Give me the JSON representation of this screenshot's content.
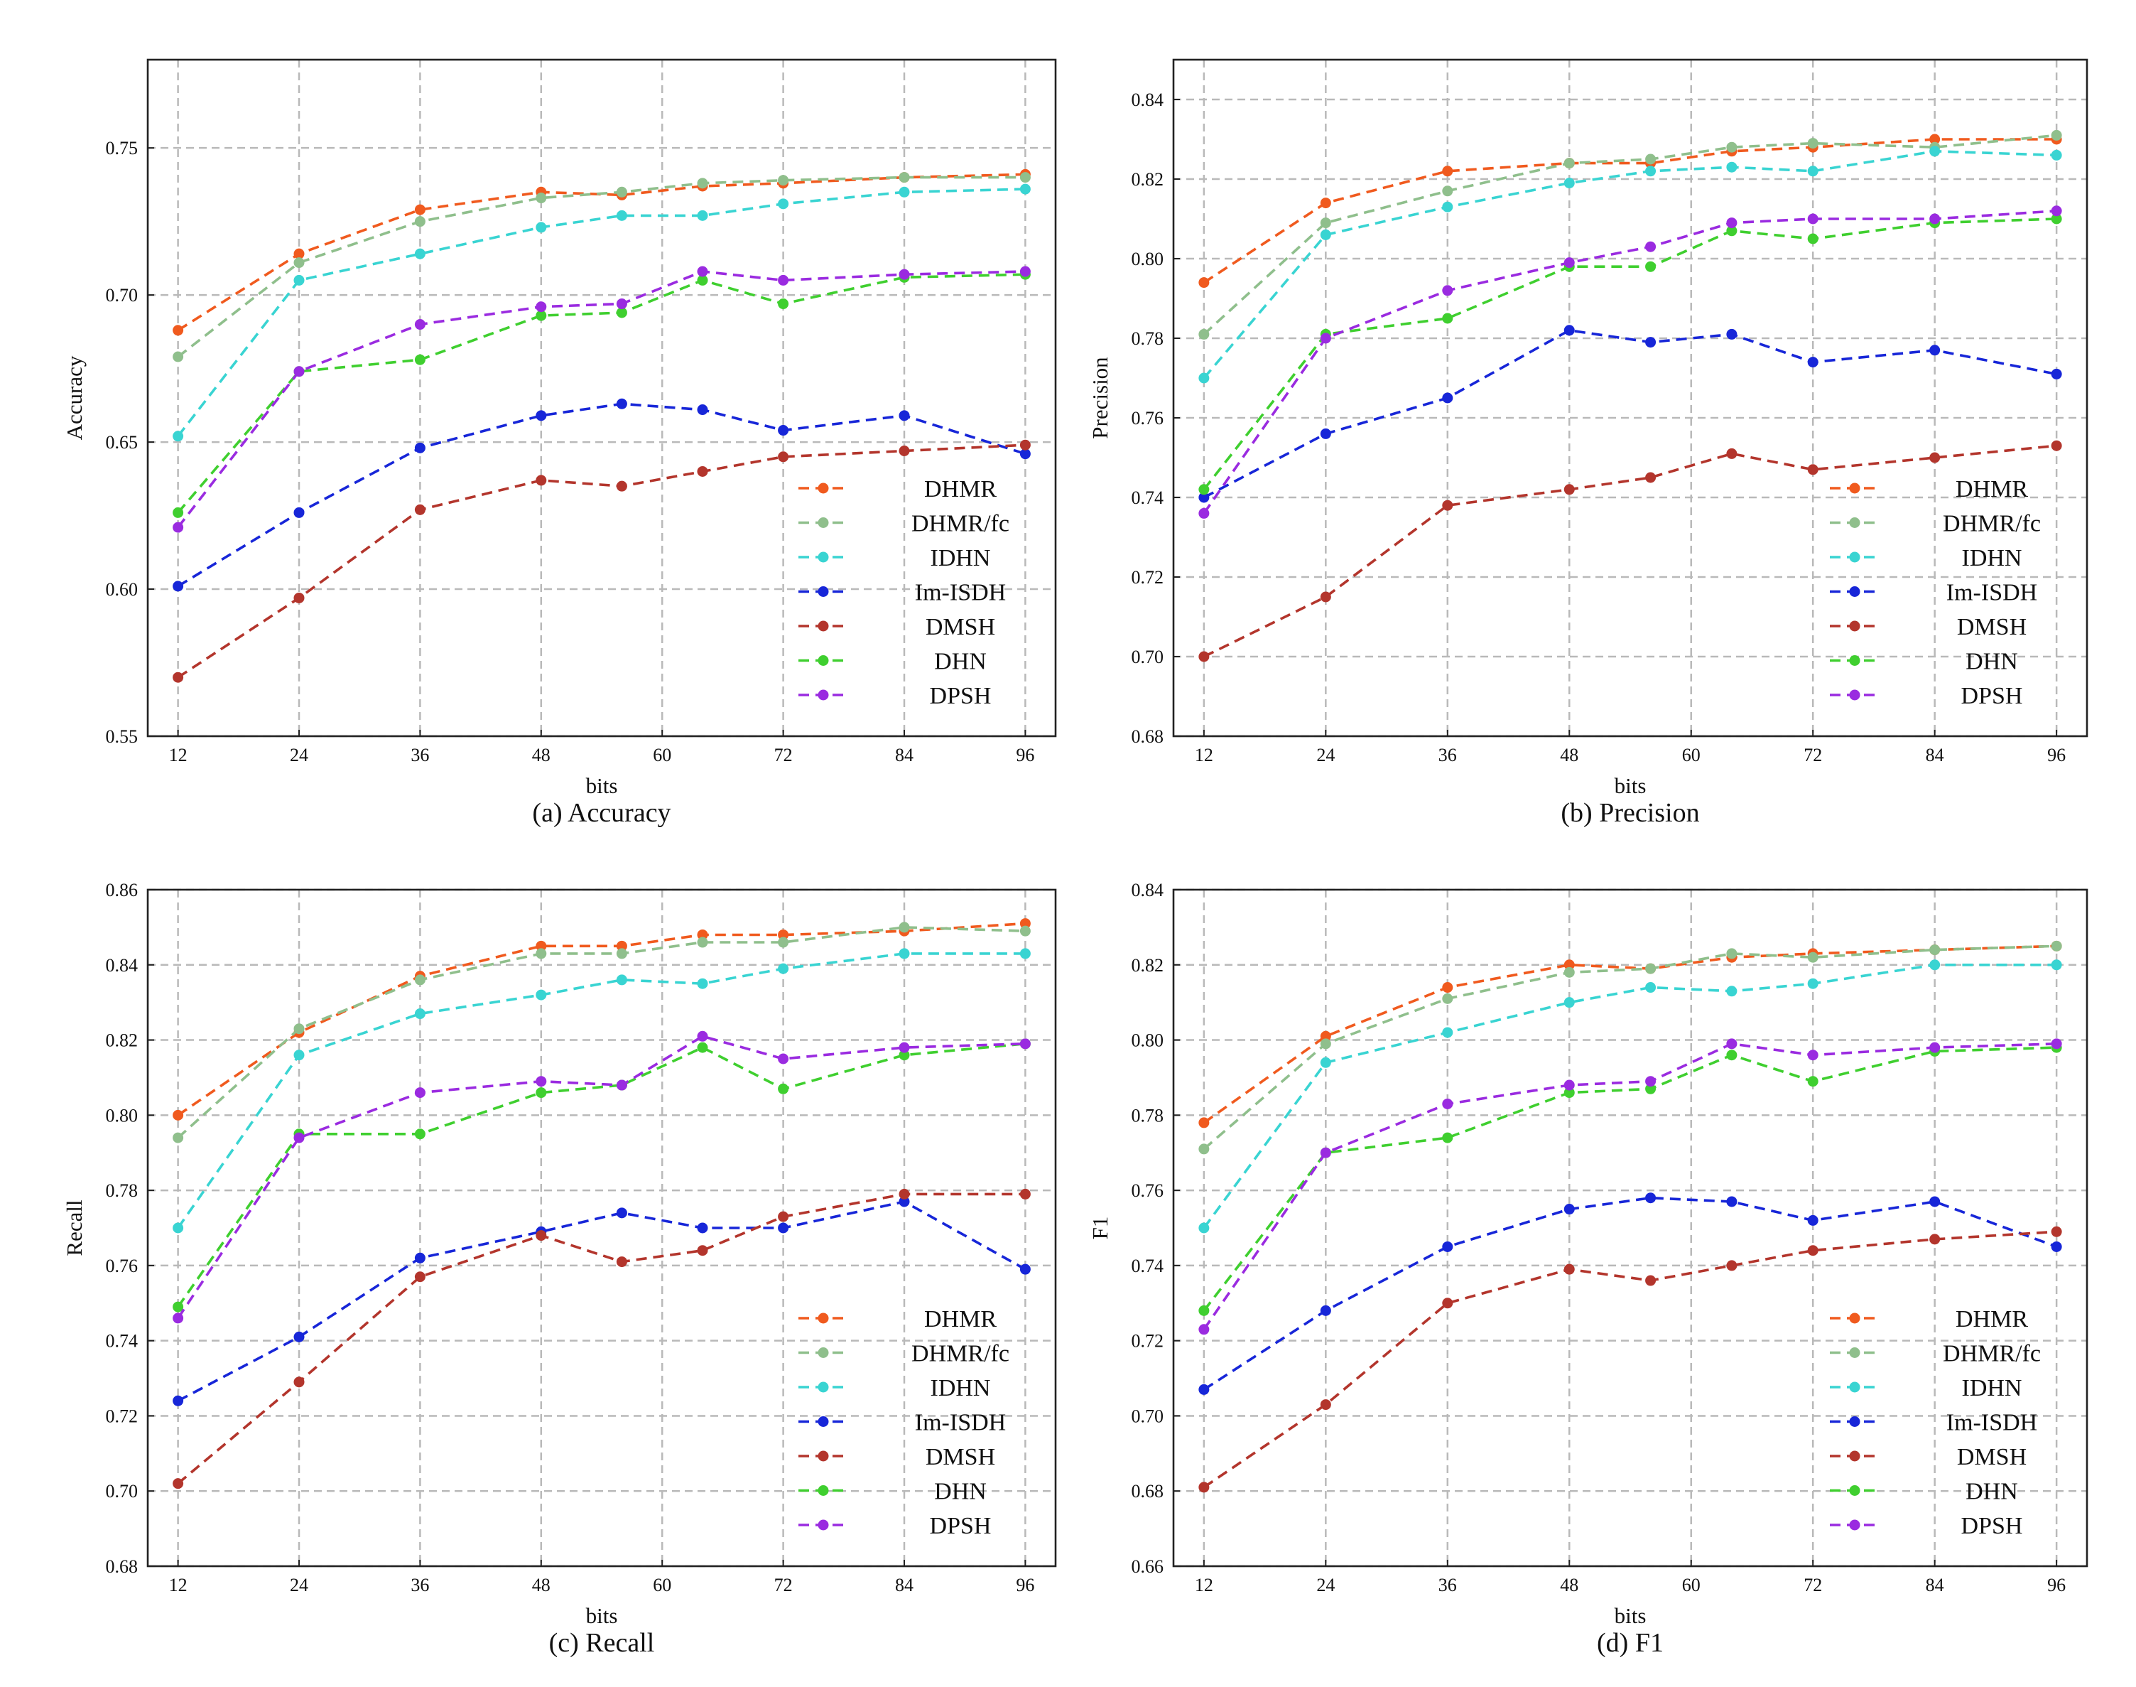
{
  "figure": {
    "series_colors": {
      "DHMR": "#f05a1e",
      "DHMR/fc": "#8fbf8c",
      "IDHN": "#39d4d2",
      "Im-ISDH": "#1726d8",
      "DMSH": "#b3352c",
      "DHN": "#3fcf2f",
      "DPSH": "#9a2be0"
    }
  },
  "chart_data": [
    {
      "type": "line",
      "id": "accuracy",
      "caption": "(a) Accuracy",
      "xlabel": "bits",
      "ylabel": "Accuracy",
      "xlim": [
        9,
        99
      ],
      "ylim": [
        0.55,
        0.78
      ],
      "xticks": [
        12,
        24,
        36,
        48,
        60,
        72,
        84,
        96
      ],
      "xtick_labels": [
        "12",
        "24",
        "36",
        "48",
        "60",
        "72",
        "84",
        "96"
      ],
      "yticks": [
        0.55,
        0.6,
        0.65,
        0.7,
        0.75
      ],
      "ytick_labels": [
        "0.55",
        "0.60",
        "0.65",
        "0.70",
        "0.75"
      ],
      "grid": true,
      "legend_position": "lower-right",
      "x": [
        12,
        24,
        36,
        48,
        56,
        64,
        72,
        84,
        96
      ],
      "series": [
        {
          "name": "DHMR",
          "values": [
            0.688,
            0.714,
            0.729,
            0.735,
            0.734,
            0.737,
            0.738,
            0.74,
            0.741
          ]
        },
        {
          "name": "DHMR/fc",
          "values": [
            0.679,
            0.711,
            0.725,
            0.733,
            0.735,
            0.738,
            0.739,
            0.74,
            0.74
          ]
        },
        {
          "name": "IDHN",
          "values": [
            0.652,
            0.705,
            0.714,
            0.723,
            0.727,
            0.727,
            0.731,
            0.735,
            0.736
          ]
        },
        {
          "name": "Im-ISDH",
          "values": [
            0.601,
            0.626,
            0.648,
            0.659,
            0.663,
            0.661,
            0.654,
            0.659,
            0.646
          ]
        },
        {
          "name": "DMSH",
          "values": [
            0.57,
            0.597,
            0.627,
            0.637,
            0.635,
            0.64,
            0.645,
            0.647,
            0.649
          ]
        },
        {
          "name": "DHN",
          "values": [
            0.626,
            0.674,
            0.678,
            0.693,
            0.694,
            0.705,
            0.697,
            0.706,
            0.707
          ]
        },
        {
          "name": "DPSH",
          "values": [
            0.621,
            0.674,
            0.69,
            0.696,
            0.697,
            0.708,
            0.705,
            0.707,
            0.708
          ]
        }
      ]
    },
    {
      "type": "line",
      "id": "precision",
      "caption": "(b) Precision",
      "xlabel": "bits",
      "ylabel": "Precision",
      "xlim": [
        9,
        99
      ],
      "ylim": [
        0.68,
        0.85
      ],
      "xticks": [
        12,
        24,
        36,
        48,
        60,
        72,
        84,
        96
      ],
      "xtick_labels": [
        "12",
        "24",
        "36",
        "48",
        "60",
        "72",
        "84",
        "96"
      ],
      "yticks": [
        0.68,
        0.7,
        0.72,
        0.74,
        0.76,
        0.78,
        0.8,
        0.82,
        0.84
      ],
      "ytick_labels": [
        "0.68",
        "0.70",
        "0.72",
        "0.74",
        "0.76",
        "0.78",
        "0.80",
        "0.82",
        "0.84"
      ],
      "grid": true,
      "legend_position": "lower-right",
      "x": [
        12,
        24,
        36,
        48,
        56,
        64,
        72,
        84,
        96
      ],
      "series": [
        {
          "name": "DHMR",
          "values": [
            0.794,
            0.814,
            0.822,
            0.824,
            0.824,
            0.827,
            0.828,
            0.83,
            0.83
          ]
        },
        {
          "name": "DHMR/fc",
          "values": [
            0.781,
            0.809,
            0.817,
            0.824,
            0.825,
            0.828,
            0.829,
            0.828,
            0.831
          ]
        },
        {
          "name": "IDHN",
          "values": [
            0.77,
            0.806,
            0.813,
            0.819,
            0.822,
            0.823,
            0.822,
            0.827,
            0.826
          ]
        },
        {
          "name": "Im-ISDH",
          "values": [
            0.74,
            0.756,
            0.765,
            0.782,
            0.779,
            0.781,
            0.774,
            0.777,
            0.771
          ]
        },
        {
          "name": "DMSH",
          "values": [
            0.7,
            0.715,
            0.738,
            0.742,
            0.745,
            0.751,
            0.747,
            0.75,
            0.753
          ]
        },
        {
          "name": "DHN",
          "values": [
            0.742,
            0.781,
            0.785,
            0.798,
            0.798,
            0.807,
            0.805,
            0.809,
            0.81
          ]
        },
        {
          "name": "DPSH",
          "values": [
            0.736,
            0.78,
            0.792,
            0.799,
            0.803,
            0.809,
            0.81,
            0.81,
            0.812
          ]
        }
      ]
    },
    {
      "type": "line",
      "id": "recall",
      "caption": "(c)  Recall",
      "xlabel": "bits",
      "ylabel": "Recall",
      "xlim": [
        9,
        99
      ],
      "ylim": [
        0.68,
        0.86
      ],
      "xticks": [
        12,
        24,
        36,
        48,
        60,
        72,
        84,
        96
      ],
      "xtick_labels": [
        "12",
        "24",
        "36",
        "48",
        "60",
        "72",
        "84",
        "96"
      ],
      "yticks": [
        0.68,
        0.7,
        0.72,
        0.74,
        0.76,
        0.78,
        0.8,
        0.82,
        0.84,
        0.86
      ],
      "ytick_labels": [
        "0.68",
        "0.70",
        "0.72",
        "0.74",
        "0.76",
        "0.78",
        "0.80",
        "0.82",
        "0.84",
        "0.86"
      ],
      "grid": true,
      "legend_position": "lower-right",
      "x": [
        12,
        24,
        36,
        48,
        56,
        64,
        72,
        84,
        96
      ],
      "series": [
        {
          "name": "DHMR",
          "values": [
            0.8,
            0.822,
            0.837,
            0.845,
            0.845,
            0.848,
            0.848,
            0.849,
            0.851
          ]
        },
        {
          "name": "DHMR/fc",
          "values": [
            0.794,
            0.823,
            0.836,
            0.843,
            0.843,
            0.846,
            0.846,
            0.85,
            0.849
          ]
        },
        {
          "name": "IDHN",
          "values": [
            0.77,
            0.816,
            0.827,
            0.832,
            0.836,
            0.835,
            0.839,
            0.843,
            0.843
          ]
        },
        {
          "name": "Im-ISDH",
          "values": [
            0.724,
            0.741,
            0.762,
            0.769,
            0.774,
            0.77,
            0.77,
            0.777,
            0.759
          ]
        },
        {
          "name": "DMSH",
          "values": [
            0.702,
            0.729,
            0.757,
            0.768,
            0.761,
            0.764,
            0.773,
            0.779,
            0.779
          ]
        },
        {
          "name": "DHN",
          "values": [
            0.749,
            0.795,
            0.795,
            0.806,
            0.808,
            0.818,
            0.807,
            0.816,
            0.819
          ]
        },
        {
          "name": "DPSH",
          "values": [
            0.746,
            0.794,
            0.806,
            0.809,
            0.808,
            0.821,
            0.815,
            0.818,
            0.819
          ]
        }
      ]
    },
    {
      "type": "line",
      "id": "f1",
      "caption": "(d)  F1",
      "xlabel": "bits",
      "ylabel": "F1",
      "xlim": [
        9,
        99
      ],
      "ylim": [
        0.66,
        0.84
      ],
      "xticks": [
        12,
        24,
        36,
        48,
        60,
        72,
        84,
        96
      ],
      "xtick_labels": [
        "12",
        "24",
        "36",
        "48",
        "60",
        "72",
        "84",
        "96"
      ],
      "yticks": [
        0.66,
        0.68,
        0.7,
        0.72,
        0.74,
        0.76,
        0.78,
        0.8,
        0.82,
        0.84
      ],
      "ytick_labels": [
        "0.66",
        "0.68",
        "0.70",
        "0.72",
        "0.74",
        "0.76",
        "0.78",
        "0.80",
        "0.82",
        "0.84"
      ],
      "grid": true,
      "legend_position": "lower-right",
      "x": [
        12,
        24,
        36,
        48,
        56,
        64,
        72,
        84,
        96
      ],
      "series": [
        {
          "name": "DHMR",
          "values": [
            0.778,
            0.801,
            0.814,
            0.82,
            0.819,
            0.822,
            0.823,
            0.824,
            0.825
          ]
        },
        {
          "name": "DHMR/fc",
          "values": [
            0.771,
            0.799,
            0.811,
            0.818,
            0.819,
            0.823,
            0.822,
            0.824,
            0.825
          ]
        },
        {
          "name": "IDHN",
          "values": [
            0.75,
            0.794,
            0.802,
            0.81,
            0.814,
            0.813,
            0.815,
            0.82,
            0.82
          ]
        },
        {
          "name": "Im-ISDH",
          "values": [
            0.707,
            0.728,
            0.745,
            0.755,
            0.758,
            0.757,
            0.752,
            0.757,
            0.745
          ]
        },
        {
          "name": "DMSH",
          "values": [
            0.681,
            0.703,
            0.73,
            0.739,
            0.736,
            0.74,
            0.744,
            0.747,
            0.749
          ]
        },
        {
          "name": "DHN",
          "values": [
            0.728,
            0.77,
            0.774,
            0.786,
            0.787,
            0.796,
            0.789,
            0.797,
            0.798
          ]
        },
        {
          "name": "DPSH",
          "values": [
            0.723,
            0.77,
            0.783,
            0.788,
            0.789,
            0.799,
            0.796,
            0.798,
            0.799
          ]
        }
      ]
    }
  ]
}
